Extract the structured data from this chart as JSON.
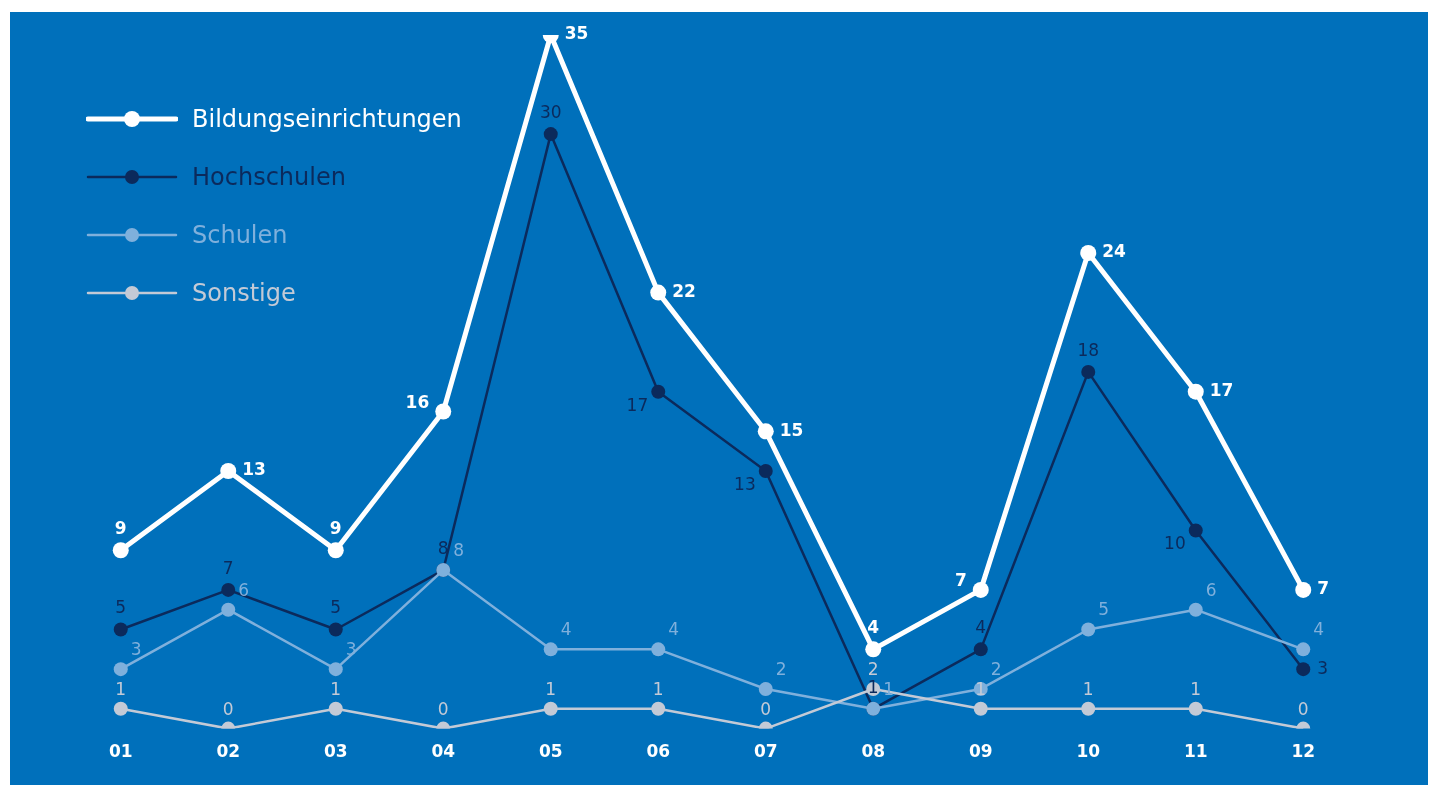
{
  "chart_data": {
    "type": "line",
    "categories": [
      "01",
      "02",
      "03",
      "04",
      "05",
      "06",
      "07",
      "08",
      "09",
      "10",
      "11",
      "12"
    ],
    "series": [
      {
        "name": "Bildungseinrichtungen",
        "color": "#ffffff",
        "values": [
          9,
          13,
          9,
          16,
          35,
          22,
          15,
          4,
          7,
          24,
          17,
          7
        ]
      },
      {
        "name": "Hochschulen",
        "color": "#0b2a5c",
        "values": [
          5,
          7,
          5,
          8,
          30,
          17,
          13,
          1,
          4,
          18,
          10,
          3
        ]
      },
      {
        "name": "Schulen",
        "color": "#7fb0dc",
        "values": [
          3,
          6,
          3,
          8,
          4,
          4,
          2,
          1,
          2,
          5,
          6,
          4
        ]
      },
      {
        "name": "Sonstige",
        "color": "#c3cad6",
        "values": [
          1,
          0,
          1,
          0,
          1,
          1,
          0,
          2,
          1,
          1,
          1,
          0
        ]
      }
    ],
    "data_labels": true,
    "legend": "top left",
    "marker": "circle",
    "grid": false
  }
}
